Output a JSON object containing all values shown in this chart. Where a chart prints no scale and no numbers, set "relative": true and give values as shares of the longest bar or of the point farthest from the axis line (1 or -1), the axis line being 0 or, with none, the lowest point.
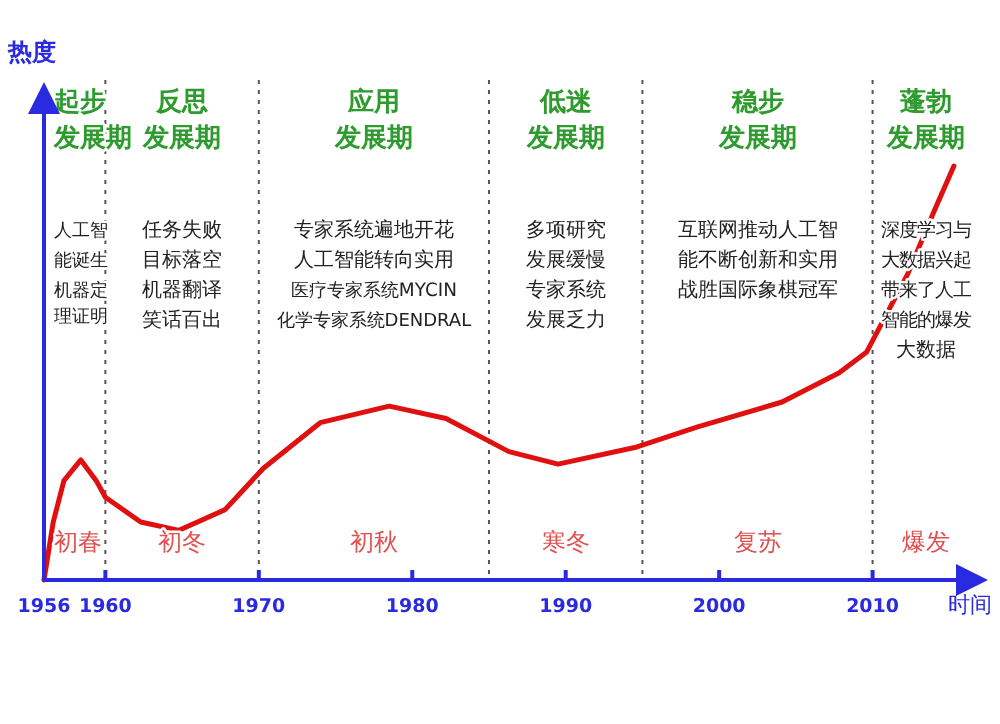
{
  "chart_data": {
    "type": "line",
    "relative": true,
    "ylabel": "热度",
    "xlabel": "时间",
    "x": [
      1956,
      1956.6,
      1957.3,
      1958.4,
      1959.4,
      1960,
      1962.3,
      1964.8,
      1967.8,
      1970.3,
      1974,
      1978.5,
      1982.2,
      1986.3,
      1989.5,
      1994.5,
      1998.6,
      2004.1,
      2007.8,
      2009.6,
      2012.3,
      2014,
      2015.3
    ],
    "series": [
      {
        "color": "#e01010",
        "values": [
          0,
          0.14,
          0.24,
          0.29,
          0.24,
          0.2,
          0.14,
          0.12,
          0.17,
          0.27,
          0.38,
          0.42,
          0.39,
          0.31,
          0.28,
          0.32,
          0.37,
          0.43,
          0.5,
          0.55,
          0.74,
          0.89,
          1
        ]
      }
    ],
    "xlim": [
      1956,
      2017
    ],
    "xticks": [
      1956,
      1960,
      1970,
      1980,
      1990,
      2000,
      2010
    ],
    "ref_lines": [
      {
        "axis": "x",
        "value": 1960,
        "line_style": "dotted",
        "color": "#555555"
      },
      {
        "axis": "x",
        "value": 1970,
        "line_style": "dotted",
        "color": "#555555"
      },
      {
        "axis": "x",
        "value": 1985,
        "line_style": "dotted",
        "color": "#555555"
      },
      {
        "axis": "x",
        "value": 1995,
        "line_style": "dotted",
        "color": "#555555"
      },
      {
        "axis": "x",
        "value": 2010,
        "line_style": "dotted",
        "color": "#555555"
      }
    ],
    "annotations": [
      "起步",
      "发展期",
      "人工智",
      "能诞生",
      "机器定理证明",
      "初春",
      "反思",
      "发展期",
      "任务失败",
      "目标落空",
      "机器翻译",
      "笑话百出",
      "初冬",
      "应用",
      "发展期",
      "专家系统遍地开花",
      "人工智能转向实用",
      "医疗专家系统MYCIN",
      "化学专家系统DENDRAL",
      "初秋",
      "低迷",
      "发展期",
      "多项研究",
      "发展缓慢",
      "专家系统",
      "发展乏力",
      "寒冬",
      "稳步",
      "发展期",
      "互联网推动人工智",
      "能不断创新和实用",
      "战胜国际象棋冠军",
      "复苏",
      "蓬勃",
      "发展期",
      "深度学习与",
      "大数据兴起",
      "带来了人工",
      "智能的爆发",
      "大数据",
      "爆发"
    ],
    "marker": "none",
    "line_style": "solid"
  }
}
